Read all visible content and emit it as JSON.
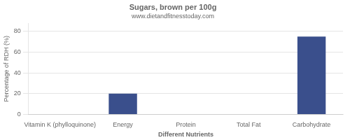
{
  "chart_data": {
    "type": "bar",
    "title": "Sugars, brown per 100g",
    "subtitle": "www.dietandfitnesstoday.com",
    "xlabel": "Different Nutrients",
    "ylabel": "Percentage of RDH (%)",
    "categories": [
      "Vitamin K (phylloquinone)",
      "Energy",
      "Protein",
      "Total Fat",
      "Carbohydrate"
    ],
    "values": [
      0,
      20,
      0,
      0,
      75
    ],
    "color": "#3a4f8c",
    "ylim": [
      0,
      88
    ],
    "yticks": [
      0,
      20,
      40,
      60,
      80
    ],
    "grid": true
  }
}
